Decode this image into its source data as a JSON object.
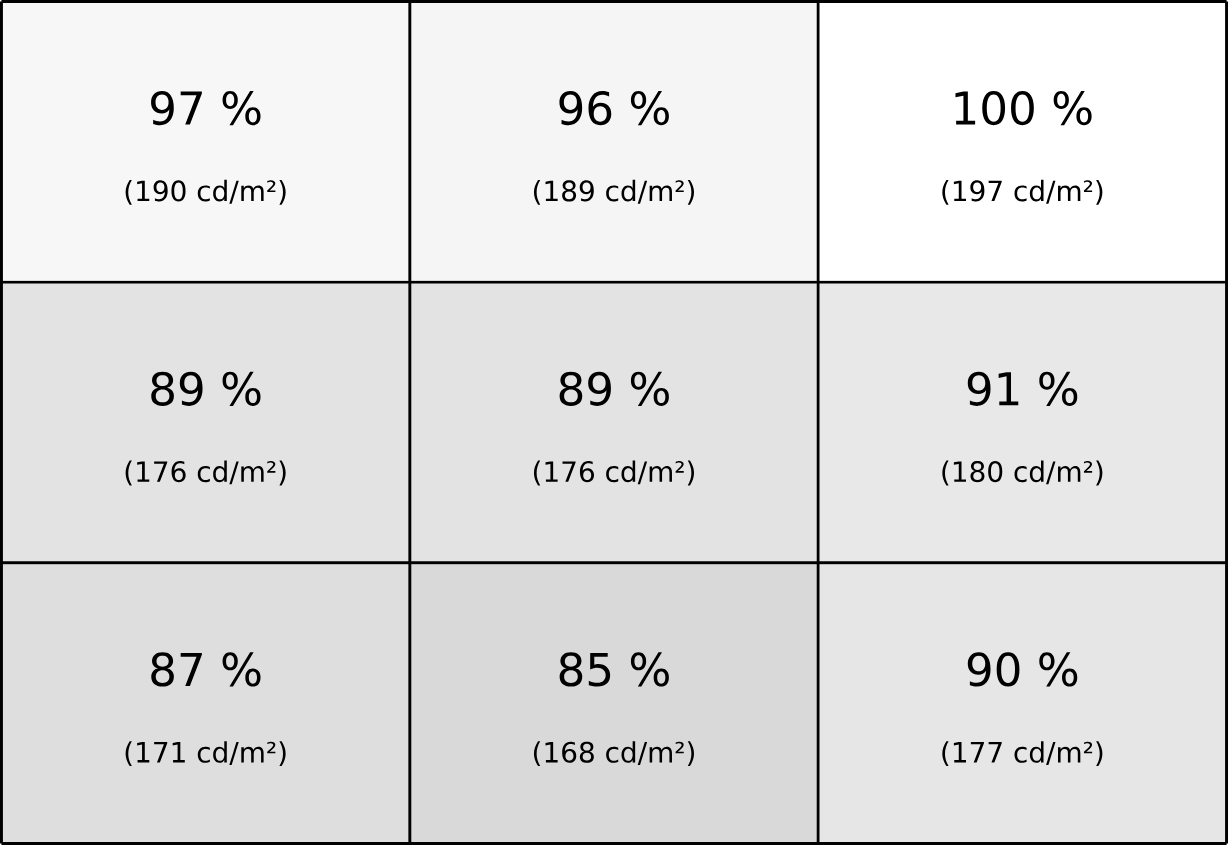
{
  "chart_data": {
    "type": "heatmap",
    "categories": [
      null,
      null,
      null
    ],
    "y_categories": [
      null,
      null,
      null
    ],
    "cells": [
      [
        97,
        96,
        100
      ],
      [
        89,
        89,
        91
      ],
      [
        87,
        85,
        90
      ]
    ],
    "cell_labels": [
      [
        "97 %",
        "96 %",
        "100 %"
      ],
      [
        "89 %",
        "89 %",
        "91 %"
      ],
      [
        "87 %",
        "85 %",
        "90 %"
      ]
    ],
    "annotations": [
      "(190 cd/m²)",
      "(189 cd/m²)",
      "(197 cd/m²)",
      "(176 cd/m²)",
      "(176 cd/m²)",
      "(180 cd/m²)",
      "(171 cd/m²)",
      "(168 cd/m²)",
      "(177 cd/m²)"
    ]
  }
}
